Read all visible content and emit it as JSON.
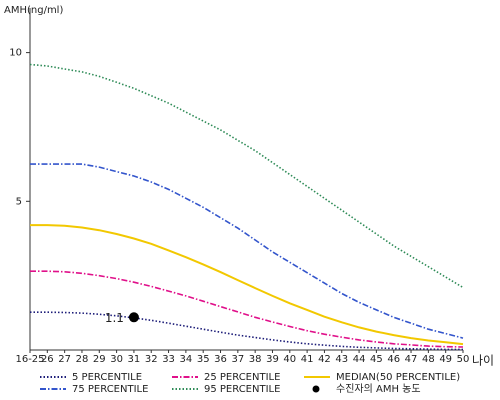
{
  "chart_data": {
    "type": "line",
    "y_label": "AMH(ng/ml)",
    "x_label": "나이",
    "categories": [
      "16-25",
      "26",
      "27",
      "28",
      "29",
      "30",
      "31",
      "32",
      "33",
      "34",
      "35",
      "36",
      "37",
      "38",
      "39",
      "40",
      "41",
      "42",
      "43",
      "44",
      "45",
      "46",
      "47",
      "48",
      "49",
      "50"
    ],
    "ylim": [
      0,
      11.5
    ],
    "yticks": [
      5,
      10
    ],
    "series": [
      {
        "name": "5 PERCENTILE",
        "color": "#1c1c78",
        "dash": "dotted",
        "values": [
          1.27,
          1.27,
          1.26,
          1.24,
          1.2,
          1.15,
          1.08,
          1.0,
          0.9,
          0.8,
          0.7,
          0.6,
          0.5,
          0.42,
          0.34,
          0.27,
          0.21,
          0.16,
          0.12,
          0.09,
          0.07,
          0.05,
          0.04,
          0.03,
          0.02,
          0.02
        ]
      },
      {
        "name": "25 PERCENTILE",
        "color": "#e0108a",
        "dash": "dashdot",
        "values": [
          2.65,
          2.65,
          2.63,
          2.58,
          2.5,
          2.4,
          2.28,
          2.14,
          1.98,
          1.82,
          1.64,
          1.46,
          1.28,
          1.1,
          0.94,
          0.79,
          0.65,
          0.53,
          0.43,
          0.34,
          0.27,
          0.21,
          0.17,
          0.13,
          0.11,
          0.1
        ]
      },
      {
        "name": "MEDIAN(50 PERCENTILE)",
        "color": "#f2c800",
        "dash": "solid",
        "values": [
          4.2,
          4.2,
          4.18,
          4.12,
          4.03,
          3.9,
          3.75,
          3.57,
          3.35,
          3.12,
          2.88,
          2.62,
          2.35,
          2.08,
          1.82,
          1.57,
          1.35,
          1.12,
          0.93,
          0.76,
          0.62,
          0.5,
          0.4,
          0.32,
          0.26,
          0.2
        ]
      },
      {
        "name": "75 PERCENTILE",
        "color": "#3355cc",
        "dash": "dashdot",
        "values": [
          6.25,
          6.25,
          6.25,
          6.25,
          6.15,
          6.0,
          5.85,
          5.65,
          5.4,
          5.1,
          4.8,
          4.45,
          4.1,
          3.7,
          3.3,
          2.95,
          2.6,
          2.25,
          1.9,
          1.6,
          1.35,
          1.1,
          0.9,
          0.7,
          0.55,
          0.4
        ]
      },
      {
        "name": "95 PERCENTILE",
        "color": "#2e8b57",
        "dash": "dotted",
        "values": [
          9.6,
          9.55,
          9.45,
          9.35,
          9.2,
          9.0,
          8.8,
          8.55,
          8.3,
          8.0,
          7.7,
          7.4,
          7.05,
          6.7,
          6.3,
          5.9,
          5.5,
          5.1,
          4.7,
          4.3,
          3.9,
          3.5,
          3.15,
          2.8,
          2.45,
          2.1
        ]
      },
      {
        "name": "수진자의 AMH 농도",
        "color": "#000000",
        "marker": "circle",
        "values": [
          null,
          null,
          null,
          null,
          null,
          null,
          1.1,
          null,
          null,
          null,
          null,
          null,
          null,
          null,
          null,
          null,
          null,
          null,
          null,
          null,
          null,
          null,
          null,
          null,
          null,
          null
        ]
      }
    ]
  }
}
